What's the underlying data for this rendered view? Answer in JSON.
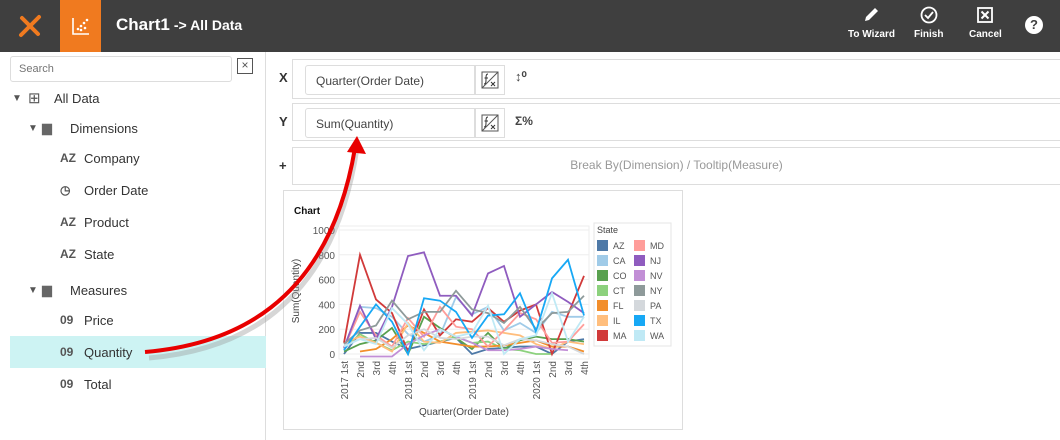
{
  "header": {
    "title": "Chart1",
    "subtitle": "-> All Data",
    "buttons": {
      "to_wizard": "To Wizard",
      "finish": "Finish",
      "cancel": "Cancel"
    },
    "help": "?"
  },
  "left": {
    "search_placeholder": "Search",
    "tree": {
      "root": "All Data",
      "dimensions": "Dimensions",
      "dim_items": [
        {
          "icon": "AZ",
          "label": "Company"
        },
        {
          "icon": "clock",
          "label": "Order Date"
        },
        {
          "icon": "AZ",
          "label": "Product"
        },
        {
          "icon": "AZ",
          "label": "State"
        }
      ],
      "measures": "Measures",
      "meas_items": [
        {
          "icon": "09",
          "label": "Price"
        },
        {
          "icon": "09",
          "label": "Quantity"
        },
        {
          "icon": "09",
          "label": "Total"
        }
      ]
    }
  },
  "binding": {
    "x_label": "X",
    "x_value": "Quarter(Order Date)",
    "y_label": "Y",
    "y_value": "Sum(Quantity)",
    "y_opt": "Σ%",
    "plus": "+",
    "break_by": "Break By(Dimension) / Tooltip(Measure)"
  },
  "chart_data": {
    "type": "line",
    "title": "Chart",
    "xlabel": "Quarter(Order Date)",
    "ylabel": "Sum(Quantity)",
    "ylim": [
      0,
      1000
    ],
    "yticks": [
      "0",
      "200",
      "400",
      "600",
      "800",
      "1000"
    ],
    "categories": [
      "2017 1st",
      "2nd",
      "3rd",
      "4th",
      "2018 1st",
      "2nd",
      "3rd",
      "4th",
      "2019 1st",
      "2nd",
      "3rd",
      "4th",
      "2020 1st",
      "2nd",
      "3rd",
      "4th"
    ],
    "legend_title": "State",
    "legend_position": "right",
    "series": [
      {
        "name": "AZ",
        "color": "#4e79a7",
        "values": [
          0,
          170,
          170,
          100,
          40,
          70,
          100,
          130,
          0,
          40,
          50,
          60,
          60,
          0,
          100,
          120
        ]
      },
      {
        "name": "CA",
        "color": "#a0cbe8",
        "values": [
          40,
          380,
          370,
          300,
          160,
          100,
          150,
          460,
          320,
          380,
          190,
          250,
          170,
          340,
          300,
          300
        ]
      },
      {
        "name": "CO",
        "color": "#59a14f",
        "values": [
          20,
          80,
          110,
          210,
          0,
          300,
          210,
          130,
          40,
          170,
          40,
          110,
          140,
          120,
          120,
          100
        ]
      },
      {
        "name": "CT",
        "color": "#8cd17d",
        "values": [
          50,
          160,
          90,
          30,
          100,
          80,
          100,
          140,
          90,
          100,
          40,
          30,
          0,
          0,
          null,
          null
        ]
      },
      {
        "name": "FL",
        "color": "#f28e2b",
        "values": [
          null,
          20,
          40,
          120,
          230,
          170,
          100,
          80,
          60,
          60,
          70,
          90,
          110,
          60,
          60,
          20
        ]
      },
      {
        "name": "IL",
        "color": "#ffbe7d",
        "values": [
          90,
          140,
          90,
          20,
          250,
          100,
          90,
          170,
          180,
          190,
          170,
          150,
          80,
          40,
          100,
          80
        ]
      },
      {
        "name": "MA",
        "color": "#d13a3a",
        "values": [
          90,
          800,
          440,
          330,
          20,
          360,
          150,
          280,
          260,
          370,
          260,
          350,
          400,
          0,
          320,
          630
        ]
      },
      {
        "name": "MD",
        "color": "#ff9d9a",
        "values": [
          50,
          340,
          150,
          60,
          290,
          140,
          380,
          220,
          200,
          60,
          190,
          330,
          280,
          90,
          100,
          240
        ]
      },
      {
        "name": "NJ",
        "color": "#8f5cbf",
        "values": [
          50,
          390,
          120,
          380,
          790,
          820,
          470,
          470,
          310,
          650,
          710,
          300,
          400,
          500,
          420,
          330
        ]
      },
      {
        "name": "NV",
        "color": "#c28fd6",
        "values": [
          null,
          -20,
          -20,
          -20,
          80,
          150,
          200,
          140,
          90,
          30,
          30,
          40,
          60,
          40,
          30,
          null
        ]
      },
      {
        "name": "NY",
        "color": "#8e9a9a",
        "values": [
          80,
          190,
          230,
          430,
          280,
          340,
          340,
          510,
          360,
          330,
          250,
          380,
          200,
          330,
          340,
          470
        ]
      },
      {
        "name": "PA",
        "color": "#d4d8dc",
        "values": [
          70,
          120,
          130,
          50,
          150,
          200,
          130,
          120,
          140,
          140,
          70,
          120,
          110,
          80,
          60,
          0
        ]
      },
      {
        "name": "TX",
        "color": "#17a8f5",
        "values": [
          30,
          220,
          400,
          260,
          0,
          450,
          430,
          340,
          130,
          310,
          320,
          490,
          180,
          610,
          760,
          310
        ]
      },
      {
        "name": "WA",
        "color": "#bfe9f5",
        "values": [
          60,
          120,
          80,
          370,
          240,
          30,
          200,
          140,
          170,
          390,
          0,
          120,
          150,
          490,
          100,
          300
        ]
      }
    ]
  }
}
